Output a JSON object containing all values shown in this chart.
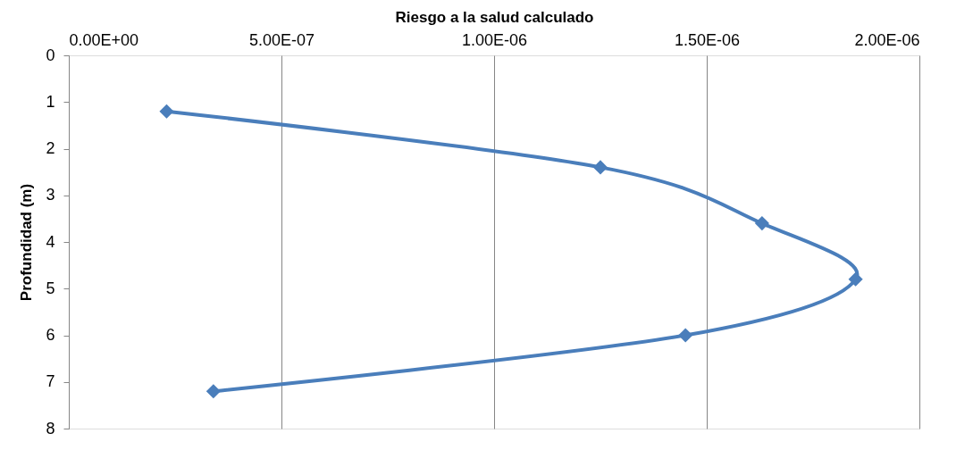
{
  "chart_data": {
    "type": "line",
    "xlabel": "Riesgo a la salud calculado",
    "ylabel": "Profundidad (m)",
    "x": [
      2.3e-07,
      1.25e-06,
      1.63e-06,
      1.85e-06,
      1.45e-06,
      3.4e-07
    ],
    "series": [
      {
        "color": "#4a7ebb",
        "values": [
          1.2,
          2.4,
          3.6,
          4.8,
          6.0,
          7.2
        ]
      }
    ],
    "xlim": [
      0,
      2e-06
    ],
    "xticks": [
      {
        "value": 0,
        "label": "0.00E+00"
      },
      {
        "value": 5e-07,
        "label": "5.00E-07"
      },
      {
        "value": 1e-06,
        "label": "1.00E-06"
      },
      {
        "value": 1.5e-06,
        "label": "1.50E-06"
      },
      {
        "value": 2e-06,
        "label": "2.00E-06"
      }
    ],
    "ylim": [
      8,
      0
    ],
    "yticks": [
      0,
      1,
      2,
      3,
      4,
      5,
      6,
      7,
      8
    ],
    "grid": "x",
    "marker": "diamond",
    "line_style": "solid"
  }
}
